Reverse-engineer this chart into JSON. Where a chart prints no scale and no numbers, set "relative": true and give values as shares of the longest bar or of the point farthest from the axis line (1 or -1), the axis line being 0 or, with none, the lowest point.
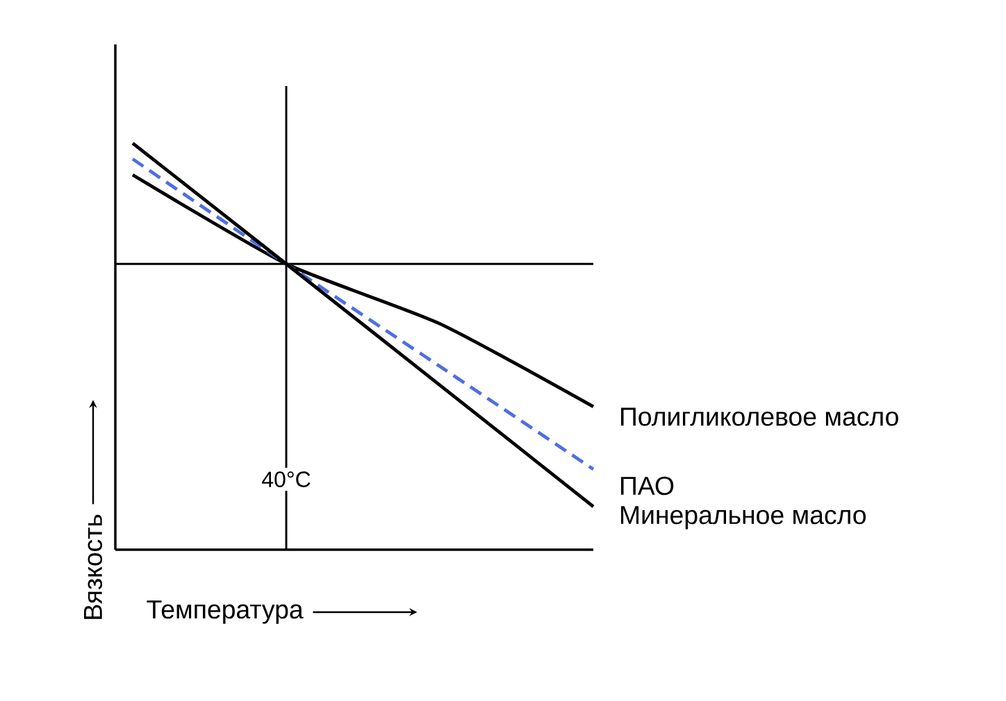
{
  "chart_data": {
    "type": "line",
    "relative": true,
    "xlabel": "Температура",
    "ylabel": "Вязкость",
    "categories": [
      null,
      null,
      null,
      null
    ],
    "series": [
      {
        "name": "Полигликолевое масло",
        "color": "#000000",
        "line_style": "solid",
        "values": [
          0.922,
          0.703,
          0.556,
          0.352
        ]
      },
      {
        "name": "ПАО",
        "color": "#4f6fe0",
        "line_style": "dashed",
        "values": [
          0.961,
          0.703,
          0.451,
          0.198
        ]
      },
      {
        "name": "Минеральное масло",
        "color": "#000000",
        "line_style": "solid",
        "values": [
          1,
          0.703,
          0.405,
          0.106
        ]
      }
    ],
    "annotations": [
      "40°C"
    ],
    "ref_lines": [
      {
        "axis": "y",
        "value": 0.703,
        "color": "#000000"
      }
    ]
  }
}
